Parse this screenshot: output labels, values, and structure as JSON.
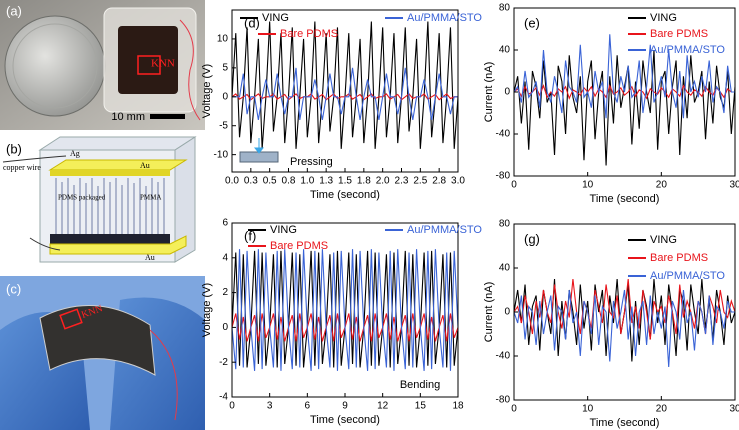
{
  "photos": {
    "a": {
      "label": "(a)",
      "sample": "KNN",
      "scale": "10 mm"
    },
    "b": {
      "label": "(b)",
      "top_electrode": "Ag",
      "top_plate": "Au",
      "wire": "copper wire",
      "package": "PDMS packaged",
      "pillars": "PMMA",
      "bottom_plate": "Au"
    },
    "c": {
      "label": "(c)",
      "sample": "KNN"
    }
  },
  "chart_data": [
    {
      "type": "line",
      "label": "(d)",
      "x_label": "Time (second)",
      "y_label": "Voltage (V)",
      "annotation": "Pressing",
      "xlim": [
        0,
        3
      ],
      "ylim": [
        -13,
        15
      ],
      "xticks": [
        {
          "value": 0,
          "label": "0.0"
        },
        {
          "value": 0.25,
          "label": "0.3"
        },
        0.5,
        {
          "value": 0.75,
          "label": "0.8"
        },
        {
          "value": 1,
          "label": "1.0"
        },
        {
          "value": 1.25,
          "label": "1.3"
        },
        1.5,
        {
          "value": 1.75,
          "label": "1.8"
        },
        {
          "value": 2,
          "label": "2.0"
        },
        {
          "value": 2.25,
          "label": "2.3"
        },
        2.5,
        {
          "value": 2.75,
          "label": "2.8"
        },
        {
          "value": 3,
          "label": "3.0"
        }
      ],
      "yticks": [
        -10,
        -5,
        0,
        5,
        10
      ],
      "x": [
        0,
        0.05,
        0.1,
        0.15,
        0.2,
        0.25,
        0.3,
        0.35,
        0.4,
        0.45,
        0.5,
        0.55,
        0.6,
        0.65,
        0.7,
        0.75,
        0.8,
        0.85,
        0.9,
        0.95,
        1,
        1.05,
        1.1,
        1.15,
        1.2,
        1.25,
        1.3,
        1.35,
        1.4,
        1.45,
        1.5,
        1.55,
        1.6,
        1.65,
        1.7,
        1.75,
        1.8,
        1.85,
        1.9,
        1.95,
        2,
        2.05,
        2.1,
        2.15,
        2.2,
        2.25,
        2.3,
        2.35,
        2.4,
        2.45,
        2.5,
        2.55,
        2.6,
        2.65,
        2.7,
        2.75,
        2.8,
        2.85,
        2.9,
        2.95,
        3
      ],
      "series": [
        {
          "name": "VING",
          "color": "#000000",
          "values": [
            0,
            11,
            -7,
            0,
            12,
            -8,
            0,
            10,
            -9,
            0,
            13,
            -6,
            0,
            11,
            -8,
            0,
            12,
            -9,
            0,
            10,
            -7,
            0,
            13,
            -8,
            0,
            11,
            -6,
            0,
            12,
            -9,
            0,
            11,
            -7,
            0,
            10,
            -8,
            0,
            13,
            -9,
            0,
            12,
            -7,
            0,
            11,
            -8,
            0,
            12,
            -6,
            0,
            10,
            -9,
            0,
            13,
            -7,
            0,
            11,
            -8,
            0,
            12,
            -9,
            0
          ]
        },
        {
          "name": "Bare PDMS",
          "color": "#e8141b",
          "values": [
            0,
            0.5,
            -0.4,
            0,
            0.4,
            -0.5,
            0,
            0.5,
            -0.3,
            0,
            0,
            0.5,
            -0.4,
            0,
            0.4,
            -0.5,
            0,
            0.5,
            -0.3,
            0,
            0,
            0.5,
            -0.4,
            0,
            0.4,
            -0.5,
            0,
            0.5,
            -0.3,
            0,
            0,
            0.5,
            -0.4,
            0,
            0.4,
            -0.5,
            0,
            0.5,
            -0.3,
            0,
            0,
            0.5,
            -0.4,
            0,
            0.4,
            -0.5,
            0,
            0.5,
            -0.3,
            0,
            0,
            0.5,
            -0.4,
            0,
            0.4,
            -0.5,
            0,
            0.5,
            -0.3,
            0,
            0
          ]
        },
        {
          "name": "Au/PMMA/STO",
          "color": "#3a63d6",
          "values": [
            0,
            0,
            0,
            4,
            -3,
            0,
            0,
            -4,
            0,
            3,
            0,
            0,
            4,
            0,
            -3,
            0,
            0,
            5,
            -4,
            0,
            0,
            0,
            3,
            0,
            -4,
            0,
            4,
            0,
            0,
            -3,
            0,
            0,
            5,
            0,
            -4,
            0,
            3,
            0,
            0,
            -4,
            0,
            4,
            0,
            0,
            -3,
            0,
            5,
            0,
            -4,
            0,
            0,
            3,
            0,
            -4,
            0,
            4,
            0,
            0,
            -3,
            0,
            0
          ]
        }
      ]
    },
    {
      "type": "line",
      "label": "(e)",
      "x_label": "Time (second)",
      "y_label": "Current (nA)",
      "xlim": [
        0,
        30
      ],
      "ylim": [
        -80,
        80
      ],
      "xticks": [
        0,
        10,
        20,
        30
      ],
      "yticks": [
        -80,
        -40,
        0,
        40,
        80
      ],
      "x": [
        0,
        0.5,
        1,
        1.5,
        2,
        2.5,
        3,
        3.5,
        4,
        4.5,
        5,
        5.5,
        6,
        6.5,
        7,
        7.5,
        8,
        8.5,
        9,
        9.5,
        10,
        10.5,
        11,
        11.5,
        12,
        12.5,
        13,
        13.5,
        14,
        14.5,
        15,
        15.5,
        16,
        16.5,
        17,
        17.5,
        18,
        18.5,
        19,
        19.5,
        20,
        20.5,
        21,
        21.5,
        22,
        22.5,
        23,
        23.5,
        24,
        24.5,
        25,
        25.5,
        26,
        26.5,
        27,
        27.5,
        28,
        28.5,
        29,
        29.5,
        30
      ],
      "series": [
        {
          "name": "VING",
          "color": "#000000",
          "values": [
            0,
            15,
            -30,
            10,
            -55,
            20,
            5,
            -25,
            30,
            -10,
            0,
            -60,
            25,
            10,
            -40,
            35,
            -5,
            -20,
            15,
            -65,
            10,
            30,
            -45,
            0,
            20,
            -70,
            15,
            -30,
            35,
            -15,
            5,
            25,
            -50,
            10,
            -35,
            30,
            0,
            -20,
            40,
            -55,
            10,
            20,
            -40,
            5,
            30,
            -60,
            15,
            -25,
            35,
            -10,
            0,
            20,
            -45,
            10,
            -30,
            25,
            -5,
            -15,
            20,
            -40,
            5
          ]
        },
        {
          "name": "Bare PDMS",
          "color": "#e8141b",
          "values": [
            0,
            3,
            -4,
            5,
            -2,
            0,
            4,
            -3,
            6,
            -5,
            0,
            -4,
            3,
            0,
            5,
            -6,
            2,
            0,
            -3,
            4,
            0,
            5,
            -4,
            3,
            0,
            -5,
            6,
            -2,
            0,
            4,
            -3,
            0,
            5,
            -4,
            2,
            0,
            -6,
            3,
            0,
            -2,
            4,
            0,
            -5,
            3,
            0,
            -4,
            6,
            0,
            -3,
            2,
            0,
            -4,
            5,
            0,
            -3,
            4,
            0,
            -5,
            3,
            0,
            0
          ]
        },
        {
          "name": "Au/PMMA/STO",
          "color": "#3a63d6",
          "values": [
            0,
            5,
            -10,
            20,
            -5,
            0,
            10,
            -15,
            40,
            0,
            -10,
            15,
            0,
            -20,
            30,
            5,
            0,
            -10,
            45,
            -5,
            0,
            -15,
            20,
            0,
            10,
            -25,
            55,
            0,
            -10,
            15,
            0,
            25,
            -5,
            0,
            30,
            -20,
            5,
            45,
            -10,
            0,
            15,
            -5,
            40,
            0,
            -15,
            20,
            -25,
            35,
            0,
            10,
            -5,
            15,
            0,
            30,
            -10,
            5,
            0,
            -20,
            25,
            0,
            0
          ]
        }
      ]
    },
    {
      "type": "line",
      "label": "(f)",
      "x_label": "Time (second)",
      "y_label": "Voltage (V)",
      "annotation": "Bending",
      "xlim": [
        0,
        18
      ],
      "ylim": [
        -4,
        6
      ],
      "xticks": [
        0,
        3,
        6,
        9,
        12,
        15,
        18
      ],
      "yticks": [
        -4,
        -2,
        0,
        2,
        4,
        6
      ],
      "x": [
        0,
        0.3,
        0.6,
        0.9,
        1.2,
        1.5,
        1.8,
        2.1,
        2.4,
        2.7,
        3,
        3.3,
        3.6,
        3.9,
        4.2,
        4.5,
        4.8,
        5.1,
        5.4,
        5.7,
        6,
        6.3,
        6.6,
        6.9,
        7.2,
        7.5,
        7.8,
        8.1,
        8.4,
        8.7,
        9,
        9.3,
        9.6,
        9.9,
        10.2,
        10.5,
        10.8,
        11.1,
        11.4,
        11.7,
        12,
        12.3,
        12.6,
        12.9,
        13.2,
        13.5,
        13.8,
        14.1,
        14.4,
        14.7,
        15,
        15.3,
        15.6,
        15.9,
        16.2,
        16.5,
        16.8,
        17.1,
        17.4,
        17.7,
        18
      ],
      "series": [
        {
          "name": "VING",
          "color": "#000000",
          "values": [
            0,
            4.3,
            -2.2,
            4.2,
            -2.3,
            0,
            4.4,
            -2.1,
            4.3,
            -2.2,
            0,
            4.2,
            -2.3,
            4.4,
            -2.1,
            0,
            4.3,
            -2.2,
            4.2,
            -2.3,
            0,
            4.4,
            -2.2,
            4.3,
            -2.1,
            0,
            4.2,
            -2.3,
            4.4,
            -2.2,
            0,
            4.3,
            -2.1,
            4.2,
            -2.3,
            0,
            4.4,
            -2.2,
            4.3,
            -2.2,
            0,
            4.2,
            -2.3,
            4.3,
            -2.1,
            0,
            4.4,
            -2.2,
            4.2,
            -2.3,
            0,
            4.3,
            -2.2,
            4.4,
            -2.1,
            0,
            4.2,
            -2.3,
            4.3,
            -2.2,
            0
          ]
        },
        {
          "name": "Bare PDMS",
          "color": "#e8141b",
          "values": [
            0,
            0.8,
            -0.7,
            0.6,
            -0.8,
            0,
            0.7,
            -0.8,
            0.8,
            -0.6,
            0,
            0.8,
            -0.7,
            0.6,
            -0.8,
            0,
            0.7,
            -0.8,
            0.8,
            -0.6,
            0,
            0.8,
            -0.7,
            0.6,
            -0.8,
            0,
            0.7,
            -0.8,
            0.8,
            -0.6,
            0,
            0.8,
            -0.7,
            0.6,
            -0.8,
            0,
            0.7,
            -0.8,
            0.8,
            -0.6,
            0,
            0.8,
            -0.7,
            0.6,
            -0.8,
            0,
            0.7,
            -0.8,
            0.8,
            -0.6,
            0,
            0.8,
            -0.7,
            0.6,
            -0.8,
            0,
            0.7,
            -0.8,
            0.8,
            -0.6,
            0
          ]
        },
        {
          "name": "Au/PMMA/STO",
          "color": "#3a63d6",
          "values": [
            0,
            -2.4,
            4.5,
            -2.3,
            4.4,
            0,
            -2.5,
            4.5,
            -2.4,
            4.3,
            0,
            -2.3,
            4.4,
            -2.5,
            4.5,
            0,
            -2.4,
            4.3,
            -2.3,
            4.5,
            0,
            -2.5,
            4.4,
            -2.4,
            4.5,
            0,
            -2.3,
            4.3,
            -2.5,
            4.4,
            0,
            -2.4,
            4.5,
            -2.3,
            4.4,
            0,
            -2.5,
            4.5,
            -2.4,
            4.3,
            0,
            -2.3,
            4.4,
            -2.5,
            4.5,
            0,
            -2.4,
            4.3,
            -2.3,
            4.5,
            0,
            -2.5,
            4.4,
            -2.4,
            4.5,
            0,
            -2.3,
            4.3,
            -2.5,
            4.4,
            0
          ]
        }
      ]
    },
    {
      "type": "line",
      "label": "(g)",
      "x_label": "Time (second)",
      "y_label": "Current (nA)",
      "xlim": [
        0,
        30
      ],
      "ylim": [
        -80,
        80
      ],
      "xticks": [
        0,
        10,
        20,
        30
      ],
      "yticks": [
        -80,
        -40,
        0,
        40,
        80
      ],
      "x": [
        0,
        0.5,
        1,
        1.5,
        2,
        2.5,
        3,
        3.5,
        4,
        4.5,
        5,
        5.5,
        6,
        6.5,
        7,
        7.5,
        8,
        8.5,
        9,
        9.5,
        10,
        10.5,
        11,
        11.5,
        12,
        12.5,
        13,
        13.5,
        14,
        14.5,
        15,
        15.5,
        16,
        16.5,
        17,
        17.5,
        18,
        18.5,
        19,
        19.5,
        20,
        20.5,
        21,
        21.5,
        22,
        22.5,
        23,
        23.5,
        24,
        24.5,
        25,
        25.5,
        26,
        26.5,
        27,
        27.5,
        28,
        28.5,
        29,
        29.5,
        30
      ],
      "series": [
        {
          "name": "VING",
          "color": "#000000",
          "values": [
            0,
            20,
            -10,
            25,
            -30,
            5,
            15,
            -35,
            20,
            0,
            -20,
            30,
            -40,
            10,
            -25,
            20,
            0,
            -30,
            25,
            -15,
            10,
            -35,
            25,
            0,
            20,
            -40,
            15,
            -10,
            30,
            -20,
            0,
            25,
            -45,
            10,
            -30,
            20,
            5,
            -25,
            30,
            -10,
            15,
            -30,
            25,
            0,
            -40,
            20,
            10,
            -35,
            25,
            0,
            -20,
            30,
            -15,
            10,
            -25,
            20,
            0,
            -30,
            15,
            -10,
            0
          ]
        },
        {
          "name": "Bare PDMS",
          "color": "#e8141b",
          "values": [
            0,
            5,
            -10,
            15,
            0,
            -20,
            10,
            -5,
            20,
            0,
            -10,
            25,
            0,
            -15,
            10,
            -5,
            30,
            0,
            -20,
            10,
            0,
            -15,
            20,
            5,
            -10,
            25,
            0,
            -5,
            15,
            -20,
            0,
            30,
            -10,
            5,
            -15,
            20,
            0,
            -25,
            10,
            0,
            5,
            -10,
            15,
            0,
            -20,
            25,
            -5,
            10,
            0,
            -15,
            10,
            0,
            -20,
            15,
            5,
            -10,
            20,
            0,
            -5,
            10,
            0
          ]
        },
        {
          "name": "Au/PMMA/STO",
          "color": "#3a63d6",
          "values": [
            0,
            -10,
            15,
            -25,
            5,
            0,
            -30,
            10,
            -20,
            0,
            15,
            -35,
            5,
            0,
            -25,
            20,
            -10,
            0,
            -40,
            10,
            0,
            -20,
            15,
            -30,
            5,
            0,
            -45,
            10,
            -15,
            0,
            20,
            -25,
            5,
            -40,
            0,
            10,
            -30,
            15,
            -20,
            0,
            -15,
            5,
            -50,
            10,
            0,
            -25,
            20,
            -10,
            0,
            -35,
            10,
            0,
            -20,
            15,
            -30,
            5,
            0,
            -15,
            10,
            0,
            0
          ]
        }
      ]
    }
  ]
}
